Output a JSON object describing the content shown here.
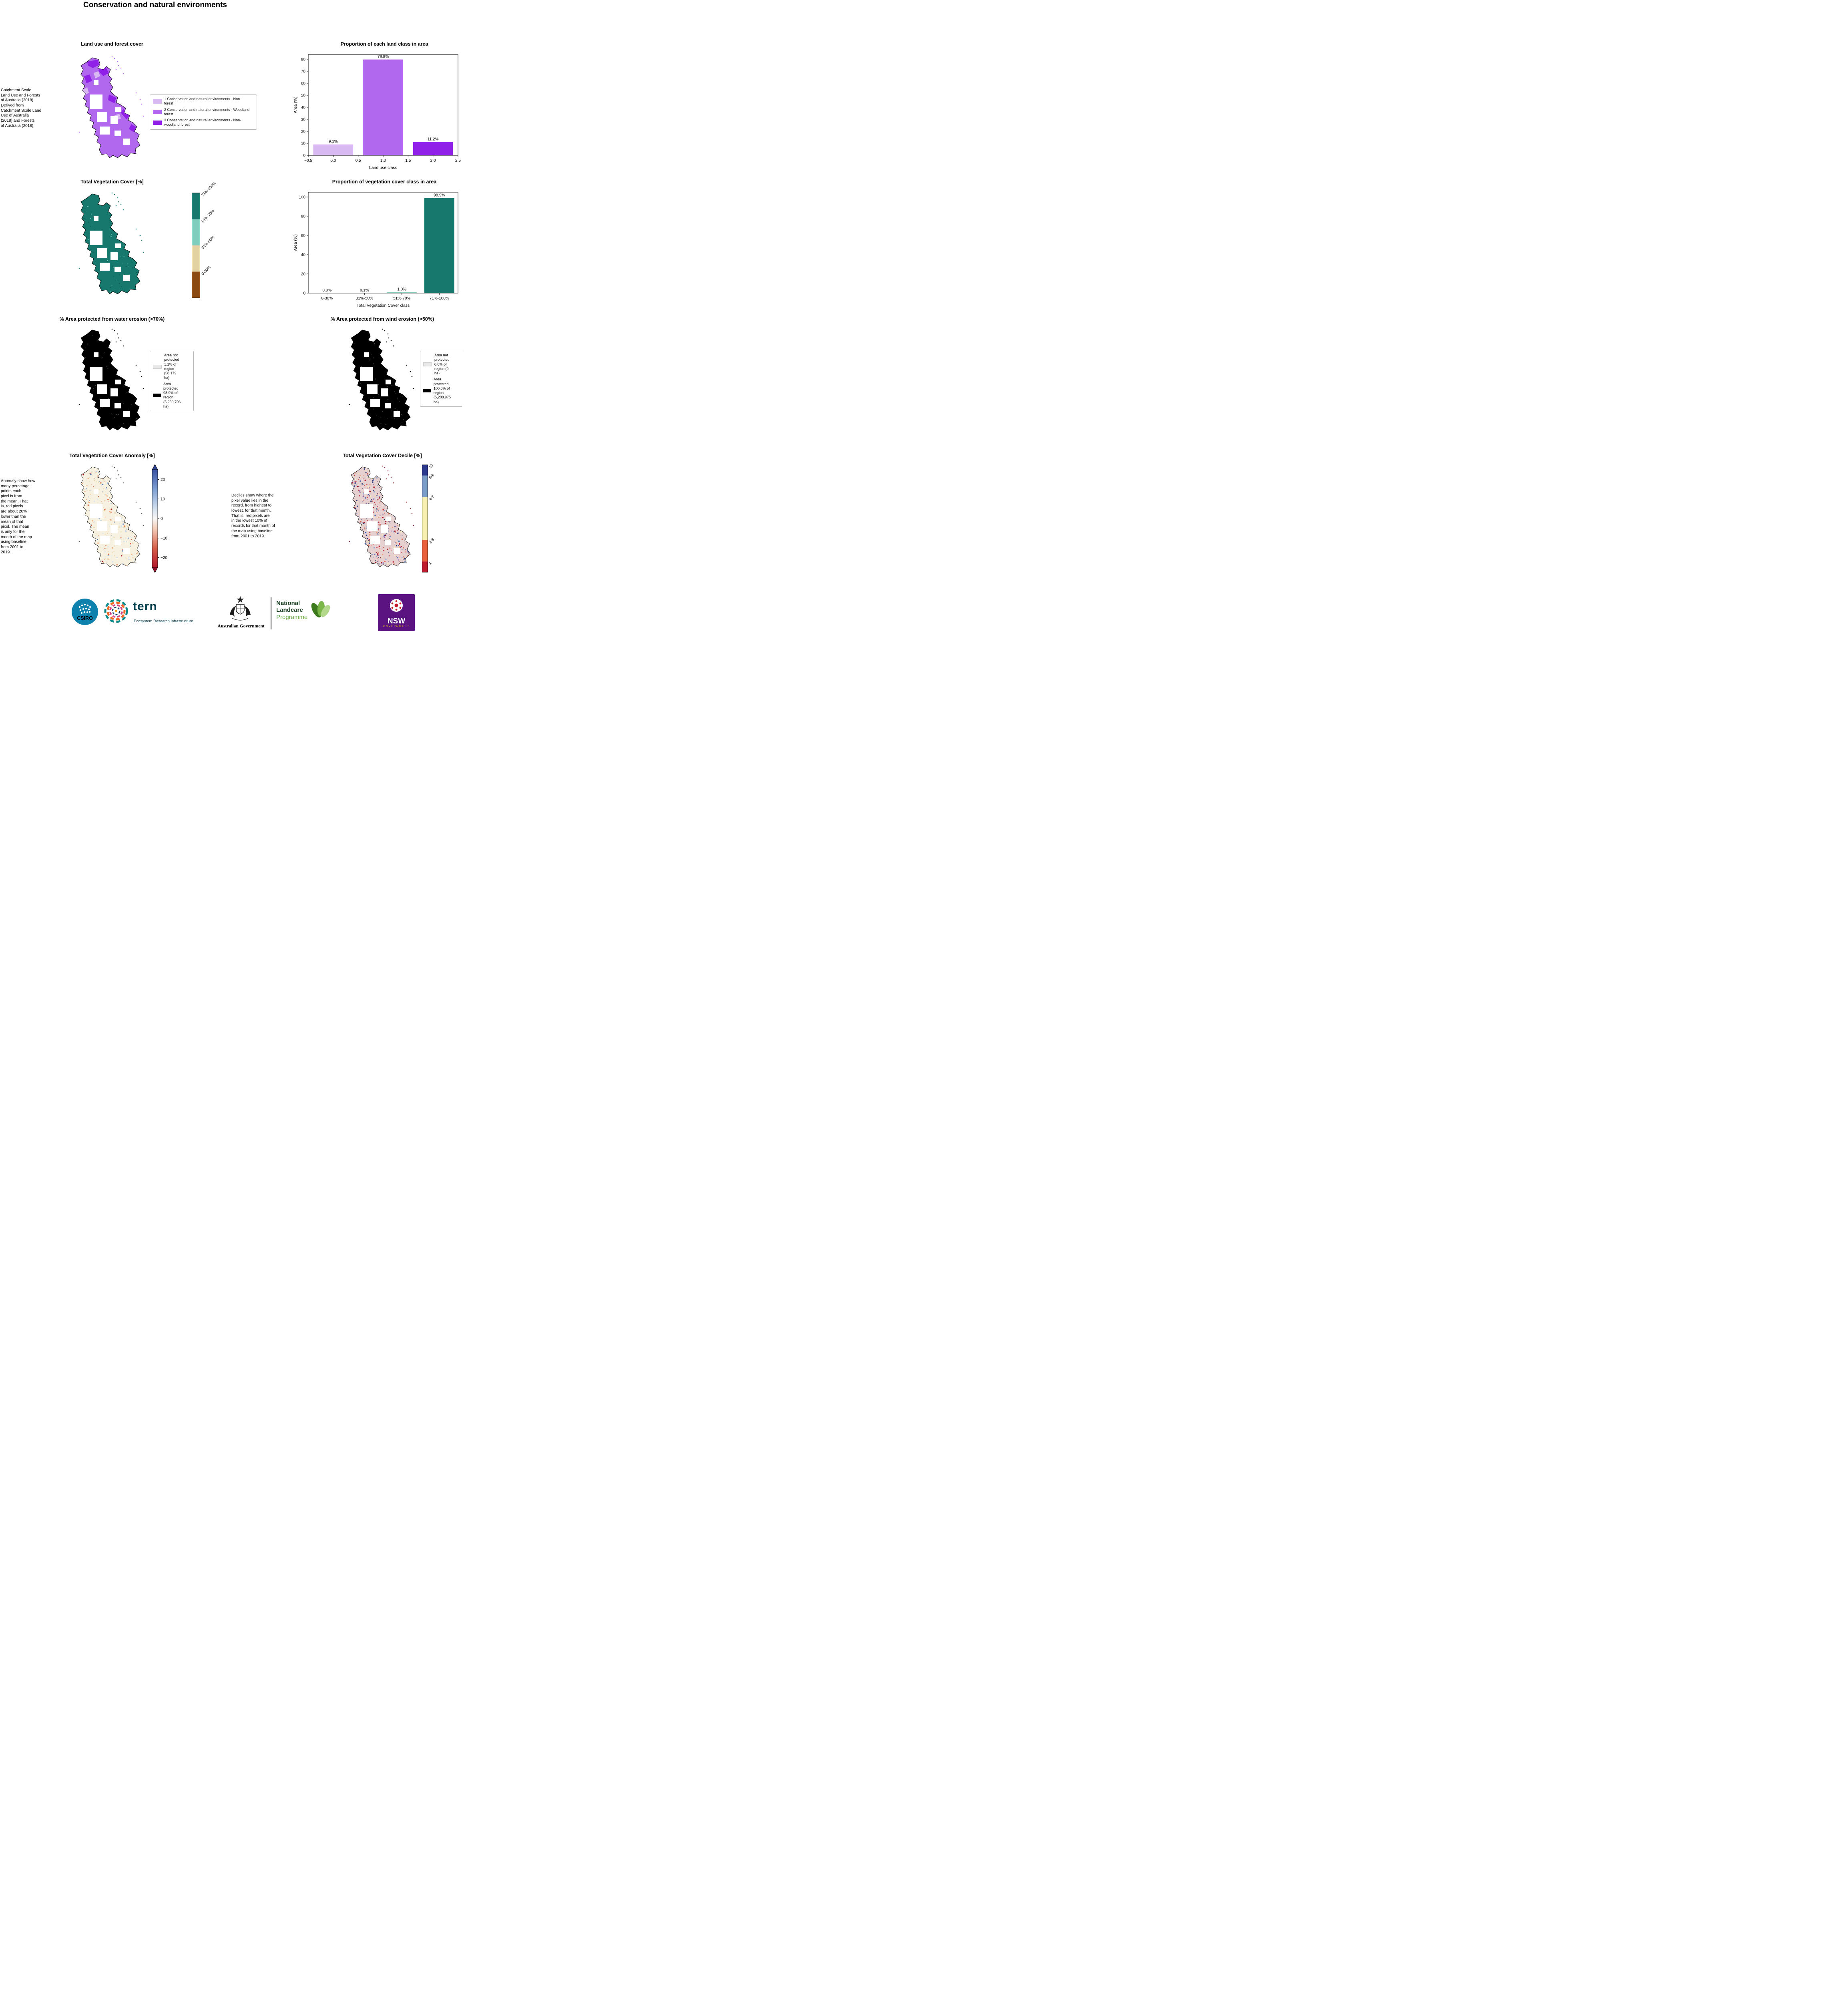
{
  "page": {
    "title": "Conservation and natural environments"
  },
  "colors": {
    "land_class_1": "#d8b9f1",
    "land_class_2": "#b268ee",
    "land_class_3": "#9020e8",
    "veg_dark_teal": "#17796d",
    "veg_light_teal": "#7fcdbc",
    "veg_tan": "#e2d2a2",
    "veg_brown": "#8a4a12",
    "protected_black": "#000000",
    "not_protected_gray": "#e8e8e8"
  },
  "panels": {
    "land_use": {
      "title": "Land use and forest cover",
      "side_note": " Catchment Scale\nLand Use and Forests\nof Australia (2018)\nDerived from\nCatchment Scale Land\nUse of Australia\n(2018) and Forests\nof Australia (2018)",
      "legend_items": [
        {
          "label": "1 Conservation and natural environments - Non-\nforest",
          "color": "#d8b9f1"
        },
        {
          "label": "2 Conservation and natural environments - Woodland\nforest",
          "color": "#b268ee"
        },
        {
          "label": "3 Conservation and natural environments - Non-\nwoodland forest",
          "color": "#9020e8"
        }
      ]
    },
    "veg_cover": {
      "title": "Total Vegetation Cover [%]",
      "colorbar": [
        {
          "label": "71%-100%",
          "color": "#17796d",
          "frac": 0.25
        },
        {
          "label": "51%-70%",
          "color": "#7fcdbc",
          "frac": 0.25
        },
        {
          "label": "31%-50%",
          "color": "#e2d2a2",
          "frac": 0.25
        },
        {
          "label": "0-30%",
          "color": "#8a4a12",
          "frac": 0.25
        }
      ]
    },
    "water_erosion": {
      "title": "% Area protected from water erosion (>70%)",
      "legend": [
        {
          "label": "Area not\nprotected\n1.1% of\nregion\n(58,179\nha)",
          "color": "#e8e8e8"
        },
        {
          "label": "Area\nprotected\n98.9% of\nregion\n(5,230,796\nha)",
          "color": "#000000"
        }
      ]
    },
    "wind_erosion": {
      "title": "% Area protected from wind erosion (>50%)",
      "legend": [
        {
          "label": "Area not\nprotected\n0.0% of\nregion (0\nha)",
          "color": "#e8e8e8"
        },
        {
          "label": "Area\nprotected\n100.0% of\nregion\n(5,288,975\nha)",
          "color": "#000000"
        }
      ]
    },
    "anomaly": {
      "title": "Total Vegetation Cover Anomaly [%]",
      "note": "Anomaly show how\nmany percetage\npoints each\npixel is from\nthe mean. That\nis, red pixels\nare about 20%\nlower than the\nmean of that\npixel. The mean\nis only for the\nmonth of the map\nusing baseline\nfrom 2001 to\n2019.",
      "colorbar_ticks": [
        {
          "v": 20,
          "label": "20"
        },
        {
          "v": 10,
          "label": "10"
        },
        {
          "v": 0,
          "label": "0"
        },
        {
          "v": -10,
          "label": "−10"
        },
        {
          "v": -20,
          "label": "−20"
        }
      ],
      "range": [
        -25,
        25
      ]
    },
    "decile": {
      "title": "Total Vegetation Cover Decile [%]",
      "note": "Deciles show where the\npixel value lies in the\nrecord, from highest to\nlowest, for that month.\nThat is, red pixels are\nin the lowest 10% of\nrecords for that month of\nthe map using baseline\nfrom 2001 to 2019.",
      "colorbar": [
        {
          "label": "10",
          "color": "#2b3a8f",
          "frac": 0.1
        },
        {
          "label": "8-9",
          "color": "#7b9dc9",
          "frac": 0.2
        },
        {
          "label": "4-7",
          "color": "#f7f0b0",
          "frac": 0.4
        },
        {
          "label": "2-3",
          "color": "#e8613c",
          "frac": 0.2
        },
        {
          "label": "1",
          "color": "#bf1b2c",
          "frac": 0.1
        }
      ]
    }
  },
  "chart_data": [
    {
      "type": "bar",
      "title": "Proportion of each land class in area",
      "xlabel": "Land use class",
      "ylabel": "Area (%)",
      "x": [
        0,
        1,
        2
      ],
      "values": [
        9.1,
        79.8,
        11.2
      ],
      "value_labels": [
        "9.1%",
        "79.8%",
        "11.2%"
      ],
      "colors": [
        "#d8b9f1",
        "#b268ee",
        "#9020e8"
      ],
      "bar_width": 0.8,
      "xlim": [
        -0.5,
        2.5
      ],
      "ylim": [
        0,
        84
      ],
      "grid": false,
      "xticks": [
        {
          "v": -0.5,
          "label": "−0.5"
        },
        {
          "v": 0,
          "label": "0.0"
        },
        {
          "v": 0.5,
          "label": "0.5"
        },
        {
          "v": 1,
          "label": "1.0"
        },
        {
          "v": 1.5,
          "label": "1.5"
        },
        {
          "v": 2,
          "label": "2.0"
        },
        {
          "v": 2.5,
          "label": "2.5"
        }
      ],
      "yticks": [
        {
          "v": 0,
          "label": "0"
        },
        {
          "v": 10,
          "label": "10"
        },
        {
          "v": 20,
          "label": "20"
        },
        {
          "v": 30,
          "label": "30"
        },
        {
          "v": 40,
          "label": "40"
        },
        {
          "v": 50,
          "label": "50"
        },
        {
          "v": 60,
          "label": "60"
        },
        {
          "v": 70,
          "label": "70"
        },
        {
          "v": 80,
          "label": "80"
        }
      ]
    },
    {
      "type": "bar",
      "title": "Proportion of vegetation cover class in area",
      "xlabel": "Total Vegetation Cover class",
      "ylabel": "Area (%)",
      "categories": [
        "0-30%",
        "31%-50%",
        "51%-70%",
        "71%-100%"
      ],
      "x": [
        0,
        1,
        2,
        3
      ],
      "values": [
        0.0,
        0.1,
        1.0,
        98.9
      ],
      "value_labels": [
        "0.0%",
        "0.1%",
        "1.0%",
        "98.9%"
      ],
      "colors": [
        "#8a4a12",
        "#e2d2a2",
        "#7fcdbc",
        "#17796d"
      ],
      "bar_width": 0.8,
      "xlim": [
        -0.5,
        3.5
      ],
      "ylim": [
        0,
        105
      ],
      "grid": false,
      "xticks": [
        {
          "v": 0,
          "label": "0-30%"
        },
        {
          "v": 1,
          "label": "31%-50%"
        },
        {
          "v": 2,
          "label": "51%-70%"
        },
        {
          "v": 3,
          "label": "71%-100%"
        }
      ],
      "yticks": [
        {
          "v": 0,
          "label": "0"
        },
        {
          "v": 20,
          "label": "20"
        },
        {
          "v": 40,
          "label": "40"
        },
        {
          "v": 60,
          "label": "60"
        },
        {
          "v": 80,
          "label": "80"
        },
        {
          "v": 100,
          "label": "100"
        }
      ]
    }
  ],
  "footer": {
    "csiro": "CSIRO",
    "tern": "tern",
    "tern_sub": "Ecosystem Research Infrastructure",
    "aus_gov": "Australian Government",
    "landcare_line1": "National",
    "landcare_line2": "Landcare",
    "landcare_line3": "Programme",
    "nsw": "NSW",
    "nsw_sub": "GOVERNMENT"
  }
}
